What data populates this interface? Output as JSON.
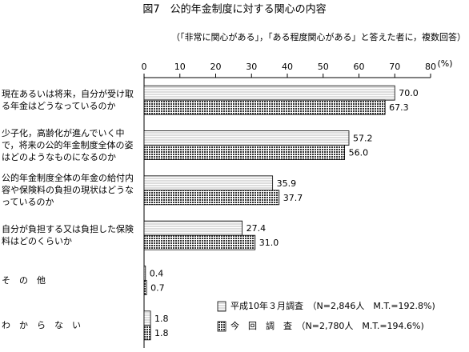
{
  "chart_data": {
    "type": "hbar",
    "title": "図7　公的年金制度に対する関心の内容",
    "subtitle": "（「非常に関心がある」，「ある程度関心がある」と答えた者に，複数回答）",
    "unit": "(%)",
    "categories": [
      "現在あるいは将来，自分が受け取る年金はどうなっているのか",
      "少子化，高齢化が進んでいく中で，将来の公的年金制度全体の姿はどのようなものになるのか",
      "公的年金制度全体の年金の給付内容や保険料の負担の現状はどうなっているのか",
      "自分が負担する又は負担した保険料はどのくらいか",
      "そ　の　他",
      "わ　か　ら　な　い"
    ],
    "series": [
      {
        "name": "平成10年３月調査　（N=2,846人　M.T.=192.8%)",
        "color": "#bbbbbb",
        "values": [
          70.0,
          57.2,
          35.9,
          27.4,
          0.4,
          1.8
        ],
        "value_labels": [
          "70.0",
          "57.2",
          "35.9",
          "27.4",
          "0.4",
          "1.8"
        ]
      },
      {
        "name": "今　回　調　査　（N=2,780人　M.T.=194.6%)",
        "color": "#333333",
        "values": [
          67.3,
          56.0,
          37.7,
          31.0,
          0.7,
          1.8
        ],
        "value_labels": [
          "67.3",
          "56.0",
          "37.7",
          "31.0",
          "0.7",
          "1.8"
        ]
      }
    ],
    "xlim": [
      0,
      80
    ],
    "xticks": [
      0,
      10,
      20,
      30,
      40,
      50,
      60,
      70,
      80
    ],
    "legend": "lower right"
  }
}
